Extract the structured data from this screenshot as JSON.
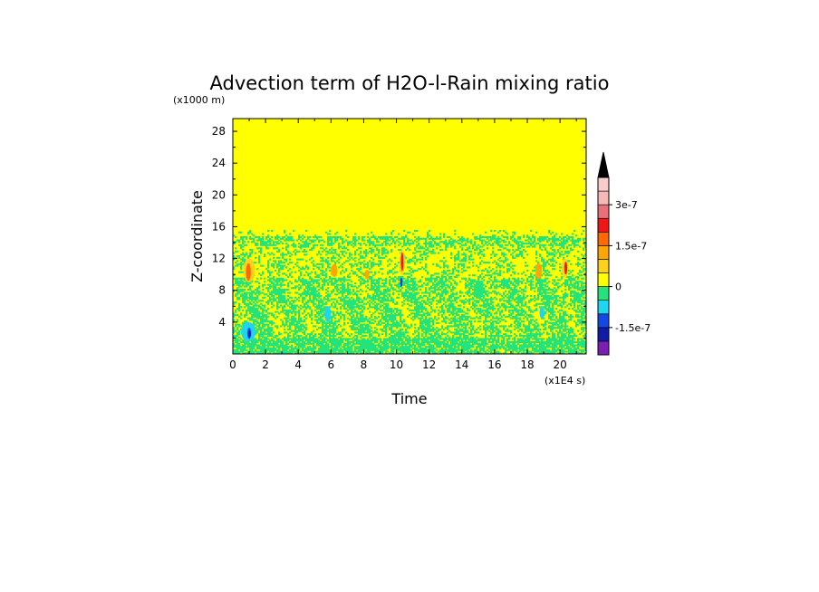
{
  "chart_data": {
    "type": "heatmap",
    "title": "Advection term of H2O-l-Rain mixing ratio",
    "xlabel": "Time",
    "ylabel": "Z-coordinate",
    "x_unit": "(x1E4 s)",
    "y_unit": "(x1000 m)",
    "xlim": [
      0,
      21.6
    ],
    "ylim": [
      0,
      29.6
    ],
    "x_ticks": [
      0,
      2,
      4,
      6,
      8,
      10,
      12,
      14,
      16,
      18,
      20
    ],
    "y_ticks": [
      4,
      8,
      12,
      16,
      20,
      24,
      28
    ],
    "grid": false,
    "colorbar": {
      "extend": "max",
      "levels": [
        -2.5e-07,
        -2e-07,
        -1.5e-07,
        -1e-07,
        -5e-08,
        0,
        5e-08,
        1e-07,
        1.5e-07,
        2e-07,
        2.5e-07,
        3e-07,
        3.5e-07,
        4e-07
      ],
      "colors": [
        "#7a1fb4",
        "#101ca8",
        "#1348e6",
        "#1fd6f0",
        "#22e37c",
        "#ffff00",
        "#ffd21a",
        "#ffa600",
        "#ff6a00",
        "#f01616",
        "#e8707a",
        "#f7b8b8",
        "#f9cccc"
      ],
      "tick_labels": [
        "3e-7",
        "1.5e-7",
        "0",
        "-1.5e-7"
      ],
      "tick_values": [
        3e-07,
        1.5e-07,
        0,
        -1.5e-07
      ]
    },
    "regions": [
      {
        "name": "upper quiescent layer",
        "z_range": [
          15.5,
          29.6
        ],
        "value_class": "0 to 5e-8"
      },
      {
        "name": "active layer",
        "z_range": [
          0,
          15.5
        ],
        "value_class": "-5e-8 to 5e-8"
      },
      {
        "name": "strong positive streaks",
        "x_centers": [
          1.0,
          10.3,
          18.8,
          20.4
        ],
        "z_range": [
          9,
          13
        ],
        "value_class": "up to 3e-7"
      },
      {
        "name": "negative patch",
        "x_centers": [
          1.0
        ],
        "z_range": [
          1.5,
          4
        ],
        "value_class": "to -1.5e-7"
      }
    ]
  }
}
